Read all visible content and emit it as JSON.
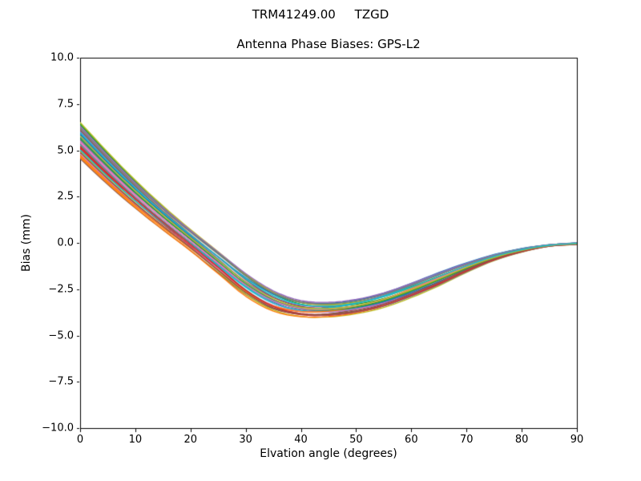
{
  "figure": {
    "background": "#ffffff",
    "text_color": "#000000",
    "spine_color": "#000000"
  },
  "chart_data": {
    "type": "line",
    "suptitle": "TRM41249.00     TZGD",
    "title": "Antenna Phase Biases: GPS-L2",
    "xlabel": "Elvation angle (degrees)",
    "ylabel": "Bias (mm)",
    "xlim": [
      0,
      90
    ],
    "ylim": [
      -10,
      10
    ],
    "grid": false,
    "legend": "none",
    "x_ticks": [
      0,
      10,
      20,
      30,
      40,
      50,
      60,
      70,
      80,
      90
    ],
    "x_tick_labels": [
      "0",
      "10",
      "20",
      "30",
      "40",
      "50",
      "60",
      "70",
      "80",
      "90"
    ],
    "y_ticks": [
      10.0,
      7.5,
      5.0,
      2.5,
      0.0,
      -2.5,
      -5.0,
      -7.5,
      -10.0
    ],
    "y_tick_labels": [
      "10.0",
      "7.5",
      "5.0",
      "2.5",
      "0.0",
      "−2.5",
      "−5.0",
      "−7.5",
      "−10.0"
    ],
    "elevation_deg": [
      0,
      5,
      10,
      15,
      20,
      25,
      30,
      35,
      40,
      45,
      50,
      55,
      60,
      65,
      70,
      75,
      80,
      85,
      90
    ],
    "band_center_mm": [
      5.53,
      4.03,
      2.63,
      1.35,
      0.15,
      -1.05,
      -2.25,
      -3.13,
      -3.55,
      -3.6,
      -3.43,
      -3.08,
      -2.55,
      -1.95,
      -1.33,
      -0.79,
      -0.4,
      -0.14,
      -0.04
    ],
    "band_halfwidth_mm": [
      0.98,
      0.88,
      0.78,
      0.7,
      0.65,
      0.7,
      0.75,
      0.68,
      0.55,
      0.5,
      0.48,
      0.48,
      0.45,
      0.4,
      0.28,
      0.17,
      0.1,
      0.04,
      0.04
    ],
    "envelope_top_mm": [
      6.5,
      4.9,
      3.4,
      2.05,
      0.8,
      -0.35,
      -1.5,
      -2.45,
      -3.0,
      -3.1,
      -2.95,
      -2.6,
      -2.1,
      -1.55,
      -1.05,
      -0.62,
      -0.3,
      -0.1,
      0.0
    ],
    "envelope_bottom_mm": [
      4.55,
      3.15,
      1.85,
      0.65,
      -0.5,
      -1.75,
      -3.0,
      -3.8,
      -4.1,
      -4.1,
      -3.9,
      -3.55,
      -3.0,
      -2.35,
      -1.6,
      -0.95,
      -0.5,
      -0.18,
      -0.08
    ],
    "num_lines": 30,
    "line_width": 1.4,
    "line_colors": [
      "#1f77b4",
      "#ff7f0e",
      "#2ca02c",
      "#d62728",
      "#9467bd",
      "#8c564b",
      "#e377c2",
      "#7f7f7f",
      "#bcbd22",
      "#17becf"
    ],
    "line_offsets_start": [
      0.172,
      -0.793,
      0.931,
      -0.379,
      0.517,
      -1.0,
      -0.034,
      0.724,
      -0.586,
      -0.241,
      0.31,
      -0.931,
      0.862,
      -0.448,
      0.034,
      0.586,
      -0.724,
      -0.172,
      1.0,
      -0.517,
      0.379,
      -0.862,
      0.103,
      -0.31,
      0.793,
      -0.655,
      -0.103,
      0.655,
      0.241,
      0.448
    ],
    "line_offsets_end": [
      -0.655,
      0.448,
      -0.241,
      0.862,
      -0.862,
      0.103,
      -0.448,
      0.655,
      -1.0,
      -0.103,
      1.0,
      -0.586,
      0.241,
      -0.793,
      0.724,
      -0.31,
      0.379,
      -0.931,
      0.034,
      0.931,
      -0.517,
      0.517,
      -0.172,
      -0.724,
      0.793,
      -0.379,
      0.172,
      0.586,
      -0.034,
      0.31
    ]
  }
}
